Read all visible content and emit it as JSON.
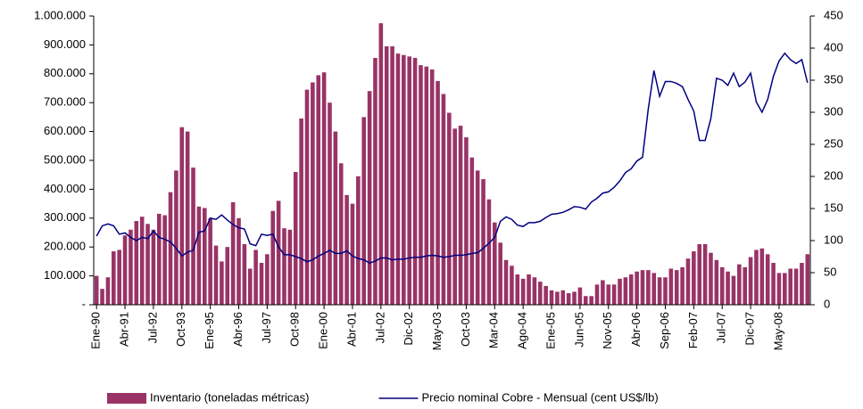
{
  "chart_data": {
    "type": "bar_line",
    "categories": [
      "Ene-90",
      null,
      null,
      null,
      null,
      "Abr-91",
      null,
      null,
      null,
      null,
      "Jul-92",
      null,
      null,
      null,
      null,
      "Oct-93",
      null,
      null,
      null,
      null,
      "Ene-95",
      null,
      null,
      null,
      null,
      "Abr-96",
      null,
      null,
      null,
      null,
      "Jul-97",
      null,
      null,
      null,
      null,
      "Oct-98",
      null,
      null,
      null,
      null,
      "Ene-00",
      null,
      null,
      null,
      null,
      "Abr-01",
      null,
      null,
      null,
      null,
      "Jul-02",
      null,
      null,
      null,
      null,
      "Dic-02",
      null,
      null,
      null,
      null,
      "May-03",
      null,
      null,
      null,
      null,
      "Oct-03",
      null,
      null,
      null,
      null,
      "Mar-04",
      null,
      null,
      null,
      null,
      "Ago-04",
      null,
      null,
      null,
      null,
      "Ene-05",
      null,
      null,
      null,
      null,
      "Jun-05",
      null,
      null,
      null,
      null,
      "Nov-05",
      null,
      null,
      null,
      null,
      "Abr-06",
      null,
      null,
      null,
      null,
      "Sep-06",
      null,
      null,
      null,
      null,
      "Feb-07",
      null,
      null,
      null,
      null,
      "Jul-07",
      null,
      null,
      null,
      null,
      "Dic-07",
      null,
      null,
      null,
      null,
      "May-08",
      null,
      null,
      null,
      null,
      null
    ],
    "series": [
      {
        "name": "Inventario (toneladas métricas)",
        "color": "#993366",
        "axis": "y",
        "values": [
          100000,
          55000,
          95000,
          185000,
          190000,
          240000,
          260000,
          290000,
          305000,
          280000,
          260000,
          315000,
          310000,
          390000,
          465000,
          615000,
          600000,
          475000,
          340000,
          335000,
          300000,
          205000,
          150000,
          200000,
          355000,
          300000,
          210000,
          125000,
          190000,
          145000,
          175000,
          325000,
          360000,
          265000,
          260000,
          460000,
          645000,
          745000,
          770000,
          795000,
          805000,
          700000,
          600000,
          490000,
          380000,
          350000,
          445000,
          650000,
          740000,
          855000,
          975000,
          895000,
          895000,
          870000,
          865000,
          860000,
          855000,
          830000,
          825000,
          815000,
          775000,
          730000,
          665000,
          610000,
          620000,
          580000,
          510000,
          465000,
          435000,
          365000,
          285000,
          215000,
          155000,
          135000,
          105000,
          90000,
          105000,
          95000,
          80000,
          65000,
          50000,
          45000,
          50000,
          40000,
          45000,
          60000,
          30000,
          30000,
          70000,
          85000,
          70000,
          70000,
          90000,
          95000,
          105000,
          115000,
          120000,
          120000,
          110000,
          95000,
          95000,
          125000,
          120000,
          130000,
          160000,
          185000,
          210000,
          210000,
          180000,
          155000,
          130000,
          115000,
          100000,
          140000,
          130000,
          165000,
          190000,
          195000,
          175000,
          145000,
          110000,
          110000,
          125000,
          125000,
          145000,
          175000
        ]
      },
      {
        "name": "Precio nominal Cobre - Mensual (cent US$/lb)",
        "color": "#000080",
        "axis": "y2",
        "values": [
          107,
          123,
          126,
          123,
          110,
          112,
          105,
          100,
          105,
          103,
          115,
          105,
          102,
          98,
          88,
          76,
          82,
          85,
          113,
          115,
          135,
          133,
          140,
          132,
          125,
          120,
          118,
          95,
          92,
          110,
          108,
          110,
          90,
          78,
          78,
          75,
          72,
          67,
          70,
          76,
          80,
          85,
          80,
          80,
          84,
          76,
          72,
          70,
          65,
          68,
          73,
          73,
          70,
          71,
          71,
          73,
          74,
          74,
          76,
          77,
          76,
          74,
          75,
          77,
          77,
          78,
          80,
          81,
          88,
          96,
          105,
          130,
          137,
          133,
          124,
          122,
          128,
          128,
          130,
          136,
          141,
          142,
          144,
          148,
          153,
          152,
          149,
          160,
          166,
          174,
          176,
          183,
          193,
          206,
          212,
          224,
          230,
          305,
          365,
          325,
          348,
          348,
          345,
          340,
          320,
          302,
          256,
          256,
          290,
          353,
          350,
          342,
          361,
          340,
          347,
          361,
          316,
          300,
          320,
          356,
          380,
          392,
          382,
          376,
          382,
          346
        ]
      }
    ],
    "ylim": [
      0,
      1000000
    ],
    "yticks": [
      {
        "value": 0,
        "label": "-"
      },
      {
        "value": 100000,
        "label": "100.000"
      },
      {
        "value": 200000,
        "label": "200.000"
      },
      {
        "value": 300000,
        "label": "300.000"
      },
      {
        "value": 400000,
        "label": "400.000"
      },
      {
        "value": 500000,
        "label": "500.000"
      },
      {
        "value": 600000,
        "label": "600.000"
      },
      {
        "value": 700000,
        "label": "700.000"
      },
      {
        "value": 800000,
        "label": "800.000"
      },
      {
        "value": 900000,
        "label": "900.000"
      },
      {
        "value": 1000000,
        "label": "1.000.000"
      }
    ],
    "y2lim": [
      0,
      450
    ],
    "y2ticks": [
      0,
      50,
      100,
      150,
      200,
      250,
      300,
      350,
      400,
      450
    ],
    "grid": false,
    "legend": "bottom"
  }
}
